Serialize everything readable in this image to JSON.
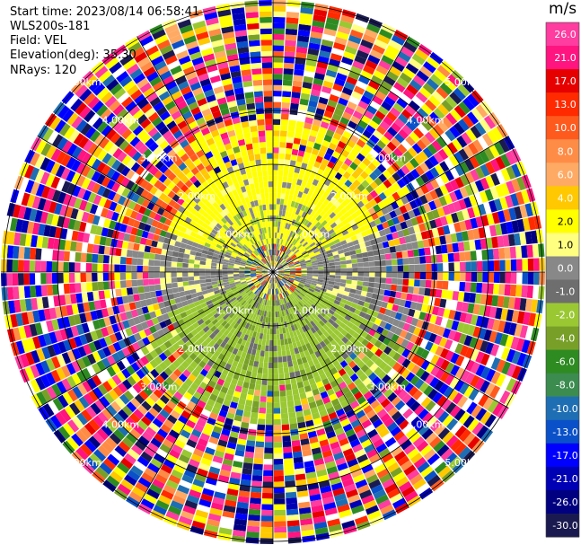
{
  "header": {
    "start_time": "Start time: 2023/08/14 06:58:41",
    "site": "WLS200s-181",
    "field": "Field: VEL",
    "elevation": "Elevation(deg): 35.30",
    "nrays": "NRays: 120"
  },
  "colorbar": {
    "unit": "m/s",
    "ticks": [
      "26.0",
      "21.0",
      "17.0",
      "13.0",
      "10.0",
      "8.0",
      "6.0",
      "4.0",
      "2.0",
      "1.0",
      "0.0",
      "-1.0",
      "-2.0",
      "-4.0",
      "-6.0",
      "-8.0",
      "-10.0",
      "-13.0",
      "-17.0",
      "-21.0",
      "-26.0",
      "-30.0"
    ],
    "colors": [
      "#ff3ca0",
      "#ff1480",
      "#e60000",
      "#ff2a00",
      "#ff5a1e",
      "#ff8c46",
      "#ffaa64",
      "#ffc800",
      "#ffff00",
      "#ffff80",
      "#888888",
      "#6e6e6e",
      "#9ac832",
      "#78a028",
      "#2e8b22",
      "#3c8c50",
      "#1e6eb4",
      "#0a50c8",
      "#0000ff",
      "#0000b4",
      "#000080",
      "#1a1a50"
    ]
  },
  "chart_data": {
    "type": "heatmap",
    "projection": "polar-ppi",
    "field": "VEL",
    "units": "m/s",
    "nrays": 120,
    "range_ring_labels": [
      "1.00km",
      "2.00km",
      "3.00km",
      "4.00km",
      "5.00km"
    ],
    "vmin": -30.0,
    "vmax": 26.0,
    "note_values": "approximate: ~0-1.5 m/s (gray/yellow) near radar, yellow positive north sector, green negative south sector, noisy multicolor beyond ~3 km"
  }
}
